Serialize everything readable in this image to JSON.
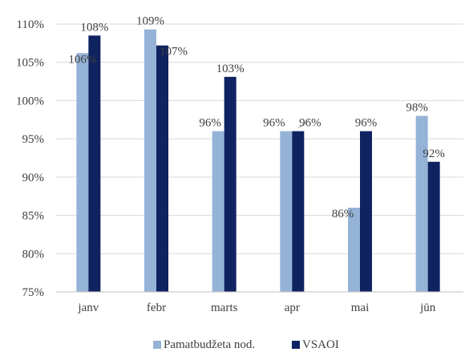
{
  "chart_data": {
    "type": "bar",
    "categories": [
      "janv",
      "febr",
      "marts",
      "apr",
      "mai",
      "jūn"
    ],
    "series": [
      {
        "name": "Pamatbudžeta nod.",
        "color": "#95b3d7",
        "values": [
          106.2,
          109.3,
          96.0,
          96.0,
          86.0,
          98.0
        ],
        "labels": [
          "106%",
          "109%",
          "96%",
          "96%",
          "86%",
          "98%"
        ]
      },
      {
        "name": "VSAOI",
        "color": "#0f2361",
        "values": [
          108.5,
          107.2,
          103.1,
          96.0,
          96.0,
          92.0
        ],
        "labels": [
          "108%",
          "107%",
          "103%",
          "96%",
          "96%",
          "92%"
        ]
      }
    ],
    "ylim": [
      75,
      110
    ],
    "yticks": [
      "75%",
      "80%",
      "85%",
      "90%",
      "95%",
      "100%",
      "105%",
      "110%"
    ],
    "ytick_values": [
      75,
      80,
      85,
      90,
      95,
      100,
      105,
      110
    ],
    "grid": true,
    "legend_position": "bottom",
    "title": "",
    "xlabel": "",
    "ylabel": ""
  }
}
